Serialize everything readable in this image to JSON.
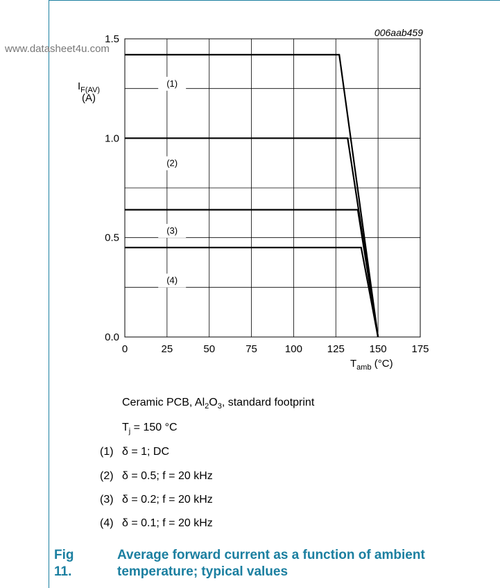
{
  "watermark": "www.datasheet4u.com",
  "chart_id": "006aab459",
  "chart_data": {
    "type": "line",
    "xlabel_main": "T",
    "xlabel_sub": "amb",
    "xlabel_unit": " (°C)",
    "ylabel_main": "I",
    "ylabel_sub": "F(AV)",
    "ylabel_unit": "(A)",
    "xlim": [
      0,
      175
    ],
    "ylim": [
      0,
      1.5
    ],
    "x_ticks": [
      0,
      25,
      50,
      75,
      100,
      125,
      150,
      175
    ],
    "y_ticks": [
      0.0,
      0.5,
      1.0,
      1.5
    ],
    "y_tick_labels": [
      "0.0",
      "0.5",
      "1.0",
      "1.5"
    ],
    "grid": true,
    "series": [
      {
        "name": "(1)",
        "points": [
          [
            0,
            1.42
          ],
          [
            127,
            1.42
          ],
          [
            150,
            0
          ]
        ]
      },
      {
        "name": "(2)",
        "points": [
          [
            0,
            1.0
          ],
          [
            132,
            1.0
          ],
          [
            150,
            0
          ]
        ]
      },
      {
        "name": "(3)",
        "points": [
          [
            0,
            0.64
          ],
          [
            138,
            0.64
          ],
          [
            150,
            0
          ]
        ]
      },
      {
        "name": "(4)",
        "points": [
          [
            0,
            0.45
          ],
          [
            140,
            0.45
          ],
          [
            150,
            0
          ]
        ]
      }
    ]
  },
  "conditions": {
    "line1_pre": "Ceramic PCB, Al",
    "line1_sub1": "2",
    "line1_mid": "O",
    "line1_sub2": "3",
    "line1_post": ", standard footprint",
    "line2_pre": "T",
    "line2_sub": "j",
    "line2_post": " = 150 °C"
  },
  "notes": [
    {
      "num": "(1)",
      "text": "δ = 1; DC"
    },
    {
      "num": "(2)",
      "text": "δ = 0.5; f = 20 kHz"
    },
    {
      "num": "(3)",
      "text": "δ = 0.2; f = 20 kHz"
    },
    {
      "num": "(4)",
      "text": "δ = 0.1; f = 20 kHz"
    }
  ],
  "figure": {
    "number": "Fig 11.",
    "caption": "Average forward current as a function of ambient temperature; typical values"
  }
}
